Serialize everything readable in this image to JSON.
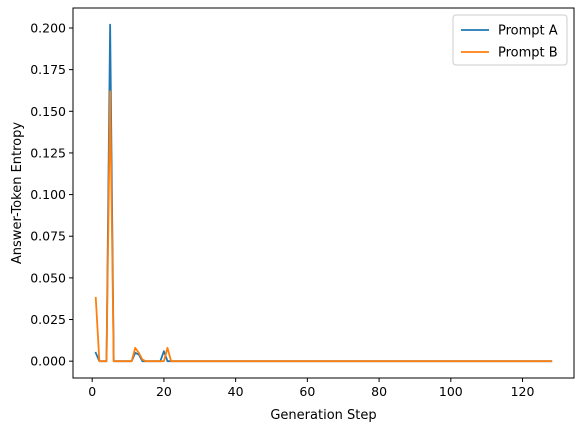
{
  "chart_data": {
    "type": "line",
    "title": "",
    "xlabel": "Generation Step",
    "ylabel": "Answer-Token Entropy",
    "xlim": [
      -5.35,
      134.35
    ],
    "ylim": [
      -0.0101,
      0.212
    ],
    "x_ticks": [
      0,
      20,
      40,
      60,
      80,
      100,
      120
    ],
    "x_tick_labels": [
      "0",
      "20",
      "40",
      "60",
      "80",
      "100",
      "120"
    ],
    "y_ticks": [
      0.0,
      0.025,
      0.05,
      0.075,
      0.1,
      0.125,
      0.15,
      0.175,
      0.2
    ],
    "y_tick_labels": [
      "0.000",
      "0.025",
      "0.050",
      "0.075",
      "0.100",
      "0.125",
      "0.150",
      "0.175",
      "0.200"
    ],
    "grid": false,
    "legend_position": "top-right",
    "series": [
      {
        "name": "Prompt A",
        "color": "#1f77b4",
        "x": [
          1,
          2,
          3,
          4,
          5,
          6,
          7,
          8,
          9,
          10,
          11,
          12,
          13,
          14,
          15,
          16,
          17,
          18,
          19,
          20,
          21,
          22,
          128
        ],
        "y": [
          0.005,
          0.0,
          0.0,
          0.0,
          0.202,
          0.0,
          0.0,
          0.0,
          0.0,
          0.0,
          0.0,
          0.005,
          0.004,
          0.0,
          0.0,
          0.0,
          0.0,
          0.0,
          0.0,
          0.006,
          0.0,
          0.0,
          0.0
        ]
      },
      {
        "name": "Prompt B",
        "color": "#ff7f0e",
        "x": [
          1,
          2,
          3,
          4,
          5,
          6,
          7,
          8,
          9,
          10,
          11,
          12,
          13,
          14,
          15,
          16,
          17,
          18,
          19,
          20,
          21,
          22,
          128
        ],
        "y": [
          0.038,
          0.0,
          0.0,
          0.0,
          0.162,
          0.0,
          0.0,
          0.0,
          0.0,
          0.0,
          0.0,
          0.008,
          0.005,
          0.001,
          0.0,
          0.0,
          0.0,
          0.0,
          0.0,
          0.0,
          0.008,
          0.0,
          0.0
        ]
      }
    ]
  }
}
